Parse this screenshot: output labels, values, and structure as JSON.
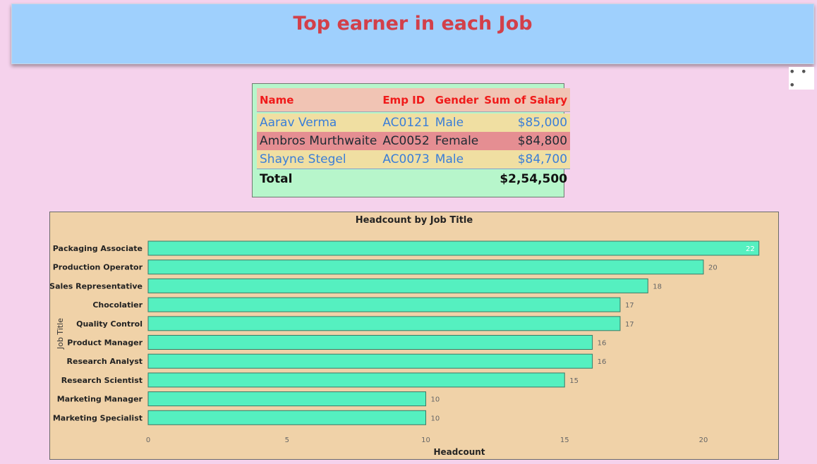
{
  "header": {
    "title": "Top earner in each Job"
  },
  "menu": {
    "more_label": "• • •"
  },
  "table": {
    "columns": [
      "Name",
      "Emp ID",
      "Gender",
      "Sum of Salary"
    ],
    "rows": [
      {
        "name": "Aarav Verma",
        "emp_id": "AC0121",
        "gender": "Male",
        "salary": "$85,000"
      },
      {
        "name": "Ambros Murthwaite",
        "emp_id": "AC0052",
        "gender": "Female",
        "salary": "$84,800"
      },
      {
        "name": "Shayne Stegel",
        "emp_id": "AC0073",
        "gender": "Male",
        "salary": "$84,700"
      }
    ],
    "total_label": "Total",
    "total_value": "$2,54,500"
  },
  "colors": {
    "bar_fill": "#55f0c0",
    "bar_stroke": "#3a7a66",
    "title_color": "#d2404a"
  },
  "chart_data": {
    "type": "bar",
    "orientation": "horizontal",
    "title": "Headcount by Job Title",
    "xlabel": "Headcount",
    "ylabel": "Job Title",
    "categories": [
      "Packaging Associate",
      "Production Operator",
      "Sales Representative",
      "Chocolatier",
      "Quality Control",
      "Product Manager",
      "Research Analyst",
      "Research Scientist",
      "Marketing Manager",
      "Marketing Specialist"
    ],
    "values": [
      22,
      20,
      18,
      17,
      17,
      16,
      16,
      15,
      10,
      10
    ],
    "xticks": [
      0,
      5,
      10,
      15,
      20
    ],
    "xlim": [
      0,
      22
    ],
    "grid": false,
    "legend": "none"
  }
}
